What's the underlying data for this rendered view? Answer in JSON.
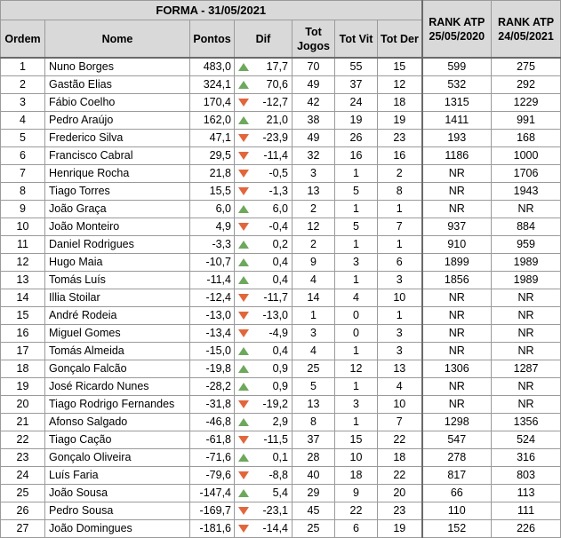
{
  "title": "FORMA - 31/05/2021",
  "headers": {
    "ordem": "Ordem",
    "nome": "Nome",
    "pontos": "Pontos",
    "dif": "Dif",
    "tot_jogos": "Tot Jogos",
    "tot_vit": "Tot Vit",
    "tot_der": "Tot Der",
    "rank_atp_2020": "RANK ATP 25/05/2020",
    "rank_atp_2021": "RANK ATP 24/05/2021"
  },
  "colors": {
    "up_arrow": "#6ea85c",
    "down_arrow": "#e2663c",
    "header_bg": "#d9d9d9"
  },
  "rows": [
    {
      "ordem": "1",
      "nome": "Nuno Borges",
      "pontos": "483,0",
      "trend": "up",
      "dif": "17,7",
      "jogos": "70",
      "vit": "55",
      "der": "15",
      "rank2020": "599",
      "rank2021": "275"
    },
    {
      "ordem": "2",
      "nome": "Gastão Elias",
      "pontos": "324,1",
      "trend": "up",
      "dif": "70,6",
      "jogos": "49",
      "vit": "37",
      "der": "12",
      "rank2020": "532",
      "rank2021": "292"
    },
    {
      "ordem": "3",
      "nome": "Fábio Coelho",
      "pontos": "170,4",
      "trend": "down",
      "dif": "-12,7",
      "jogos": "42",
      "vit": "24",
      "der": "18",
      "rank2020": "1315",
      "rank2021": "1229"
    },
    {
      "ordem": "4",
      "nome": "Pedro Araújo",
      "pontos": "162,0",
      "trend": "up",
      "dif": "21,0",
      "jogos": "38",
      "vit": "19",
      "der": "19",
      "rank2020": "1411",
      "rank2021": "991"
    },
    {
      "ordem": "5",
      "nome": "Frederico Silva",
      "pontos": "47,1",
      "trend": "down",
      "dif": "-23,9",
      "jogos": "49",
      "vit": "26",
      "der": "23",
      "rank2020": "193",
      "rank2021": "168"
    },
    {
      "ordem": "6",
      "nome": "Francisco Cabral",
      "pontos": "29,5",
      "trend": "down",
      "dif": "-11,4",
      "jogos": "32",
      "vit": "16",
      "der": "16",
      "rank2020": "1186",
      "rank2021": "1000"
    },
    {
      "ordem": "7",
      "nome": "Henrique Rocha",
      "pontos": "21,8",
      "trend": "down",
      "dif": "-0,5",
      "jogos": "3",
      "vit": "1",
      "der": "2",
      "rank2020": "NR",
      "rank2021": "1706"
    },
    {
      "ordem": "8",
      "nome": "Tiago Torres",
      "pontos": "15,5",
      "trend": "down",
      "dif": "-1,3",
      "jogos": "13",
      "vit": "5",
      "der": "8",
      "rank2020": "NR",
      "rank2021": "1943"
    },
    {
      "ordem": "9",
      "nome": "João Graça",
      "pontos": "6,0",
      "trend": "up",
      "dif": "6,0",
      "jogos": "2",
      "vit": "1",
      "der": "1",
      "rank2020": "NR",
      "rank2021": "NR"
    },
    {
      "ordem": "10",
      "nome": "João Monteiro",
      "pontos": "4,9",
      "trend": "down",
      "dif": "-0,4",
      "jogos": "12",
      "vit": "5",
      "der": "7",
      "rank2020": "937",
      "rank2021": "884"
    },
    {
      "ordem": "11",
      "nome": "Daniel Rodrigues",
      "pontos": "-3,3",
      "trend": "up",
      "dif": "0,2",
      "jogos": "2",
      "vit": "1",
      "der": "1",
      "rank2020": "910",
      "rank2021": "959"
    },
    {
      "ordem": "12",
      "nome": "Hugo Maia",
      "pontos": "-10,7",
      "trend": "up",
      "dif": "0,4",
      "jogos": "9",
      "vit": "3",
      "der": "6",
      "rank2020": "1899",
      "rank2021": "1989"
    },
    {
      "ordem": "13",
      "nome": "Tomás Luís",
      "pontos": "-11,4",
      "trend": "up",
      "dif": "0,4",
      "jogos": "4",
      "vit": "1",
      "der": "3",
      "rank2020": "1856",
      "rank2021": "1989"
    },
    {
      "ordem": "14",
      "nome": "Illia Stoilar",
      "pontos": "-12,4",
      "trend": "down",
      "dif": "-11,7",
      "jogos": "14",
      "vit": "4",
      "der": "10",
      "rank2020": "NR",
      "rank2021": "NR"
    },
    {
      "ordem": "15",
      "nome": "André Rodeia",
      "pontos": "-13,0",
      "trend": "down",
      "dif": "-13,0",
      "jogos": "1",
      "vit": "0",
      "der": "1",
      "rank2020": "NR",
      "rank2021": "NR"
    },
    {
      "ordem": "16",
      "nome": "Miguel Gomes",
      "pontos": "-13,4",
      "trend": "down",
      "dif": "-4,9",
      "jogos": "3",
      "vit": "0",
      "der": "3",
      "rank2020": "NR",
      "rank2021": "NR"
    },
    {
      "ordem": "17",
      "nome": "Tomás Almeida",
      "pontos": "-15,0",
      "trend": "up",
      "dif": "0,4",
      "jogos": "4",
      "vit": "1",
      "der": "3",
      "rank2020": "NR",
      "rank2021": "NR"
    },
    {
      "ordem": "18",
      "nome": "Gonçalo Falcão",
      "pontos": "-19,8",
      "trend": "up",
      "dif": "0,9",
      "jogos": "25",
      "vit": "12",
      "der": "13",
      "rank2020": "1306",
      "rank2021": "1287"
    },
    {
      "ordem": "19",
      "nome": "José Ricardo Nunes",
      "pontos": "-28,2",
      "trend": "up",
      "dif": "0,9",
      "jogos": "5",
      "vit": "1",
      "der": "4",
      "rank2020": "NR",
      "rank2021": "NR"
    },
    {
      "ordem": "20",
      "nome": "Tiago Rodrigo Fernandes",
      "pontos": "-31,8",
      "trend": "down",
      "dif": "-19,2",
      "jogos": "13",
      "vit": "3",
      "der": "10",
      "rank2020": "NR",
      "rank2021": "NR"
    },
    {
      "ordem": "21",
      "nome": "Afonso Salgado",
      "pontos": "-46,8",
      "trend": "up",
      "dif": "2,9",
      "jogos": "8",
      "vit": "1",
      "der": "7",
      "rank2020": "1298",
      "rank2021": "1356"
    },
    {
      "ordem": "22",
      "nome": "Tiago Cação",
      "pontos": "-61,8",
      "trend": "down",
      "dif": "-11,5",
      "jogos": "37",
      "vit": "15",
      "der": "22",
      "rank2020": "547",
      "rank2021": "524"
    },
    {
      "ordem": "23",
      "nome": "Gonçalo Oliveira",
      "pontos": "-71,6",
      "trend": "up",
      "dif": "0,1",
      "jogos": "28",
      "vit": "10",
      "der": "18",
      "rank2020": "278",
      "rank2021": "316"
    },
    {
      "ordem": "24",
      "nome": "Luís Faria",
      "pontos": "-79,6",
      "trend": "down",
      "dif": "-8,8",
      "jogos": "40",
      "vit": "18",
      "der": "22",
      "rank2020": "817",
      "rank2021": "803"
    },
    {
      "ordem": "25",
      "nome": "João Sousa",
      "pontos": "-147,4",
      "trend": "up",
      "dif": "5,4",
      "jogos": "29",
      "vit": "9",
      "der": "20",
      "rank2020": "66",
      "rank2021": "113"
    },
    {
      "ordem": "26",
      "nome": "Pedro Sousa",
      "pontos": "-169,7",
      "trend": "down",
      "dif": "-23,1",
      "jogos": "45",
      "vit": "22",
      "der": "23",
      "rank2020": "110",
      "rank2021": "111"
    },
    {
      "ordem": "27",
      "nome": "João Domingues",
      "pontos": "-181,6",
      "trend": "down",
      "dif": "-14,4",
      "jogos": "25",
      "vit": "6",
      "der": "19",
      "rank2020": "152",
      "rank2021": "226"
    }
  ]
}
